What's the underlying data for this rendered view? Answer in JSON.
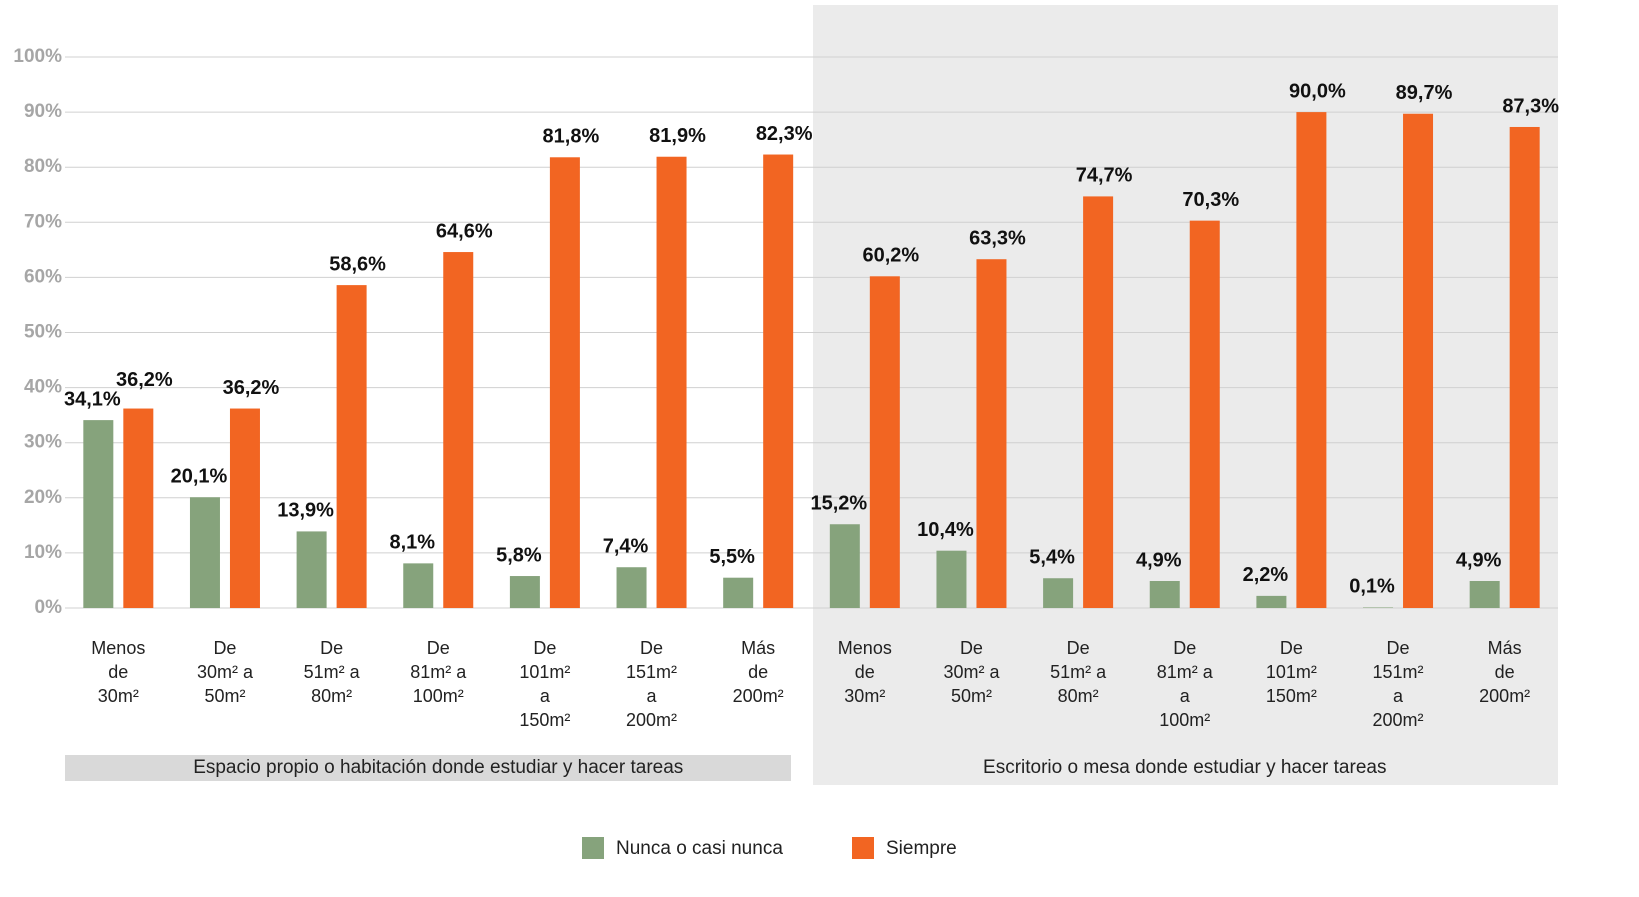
{
  "chart_data": {
    "type": "bar",
    "groups": [
      "Espacio propio o habitación donde estudiar y  hacer tareas",
      "Escritorio o mesa donde estudiar y hacer tareas"
    ],
    "categories": [
      "Menos de 30m²",
      "De 30m² a 50m²",
      "De 51m² a 80m²",
      "De 81m² a 100m²",
      "De 101m² a 150m²",
      "De 151m² a 200m²",
      "Más de 200m²",
      "Menos de 30m²",
      "De 30m² a 50m²",
      "De 51m² a 80m²",
      "De 81m² a a 100m²",
      "De 101m² 150m²",
      "De 151m² a 200m²",
      "Más de 200m²"
    ],
    "series": [
      {
        "name": "Nunca o casi nunca",
        "color": "#86a37c",
        "values": [
          34.1,
          20.1,
          13.9,
          8.1,
          5.8,
          7.4,
          5.5,
          15.2,
          10.4,
          5.4,
          4.9,
          2.2,
          0.1,
          4.9
        ],
        "value_labels": [
          "34,1%",
          "20,1%",
          "13,9%",
          "8,1%",
          "5,8%",
          "7,4%",
          "5,5%",
          "15,2%",
          "10,4%",
          "5,4%",
          "4,9%",
          "2,2%",
          "0,1%",
          "4,9%"
        ]
      },
      {
        "name": "Siempre",
        "color": "#f26522",
        "values": [
          36.2,
          36.2,
          58.6,
          64.6,
          81.8,
          81.9,
          82.3,
          60.2,
          63.3,
          74.7,
          70.3,
          90.0,
          89.7,
          87.3
        ],
        "value_labels": [
          "36,2%",
          "36,2%",
          "58,6%",
          "64,6%",
          "81,8%",
          "81,9%",
          "82,3%",
          "60,2%",
          "63,3%",
          "74,7%",
          "70,3%",
          "90,0%",
          "89,7%",
          "87,3%"
        ]
      }
    ],
    "ylim": [
      0,
      100
    ],
    "yticks": [
      {
        "value": 0,
        "label": "0%"
      },
      {
        "value": 10,
        "label": "10%"
      },
      {
        "value": 20,
        "label": "20%"
      },
      {
        "value": 30,
        "label": "30%"
      },
      {
        "value": 40,
        "label": "40%"
      },
      {
        "value": 50,
        "label": "50%"
      },
      {
        "value": 60,
        "label": "60%"
      },
      {
        "value": 70,
        "label": "70%"
      },
      {
        "value": 80,
        "label": "80%"
      },
      {
        "value": 90,
        "label": "90%"
      },
      {
        "value": 100,
        "label": "100%"
      }
    ],
    "grid": true,
    "legend": "bottom"
  }
}
